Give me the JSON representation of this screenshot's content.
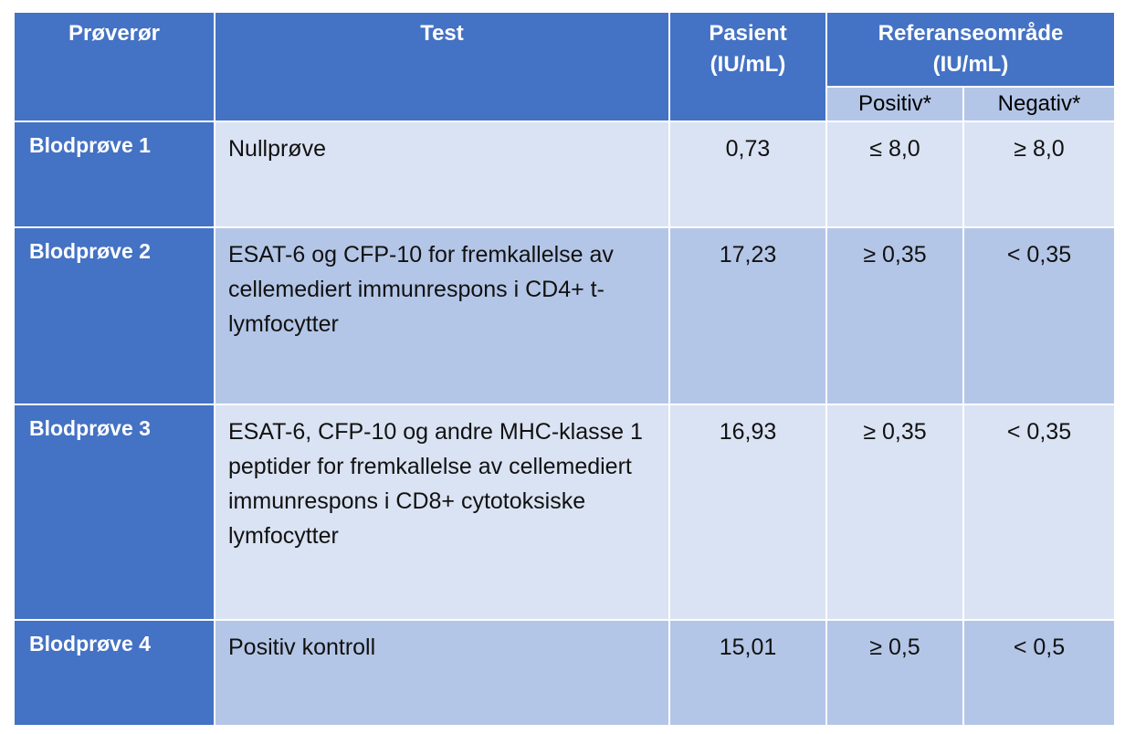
{
  "headers": {
    "sample_tube": "Prøverør",
    "test": "Test",
    "patient": "Pasient (IU/mL)",
    "reference_range": "Referanseområde (IU/mL)",
    "positive": "Positiv*",
    "negative": "Negativ*"
  },
  "rows": [
    {
      "tube": "Blodprøve 1",
      "test": "Nullprøve",
      "patient": "0,73",
      "positive": "≤ 8,0",
      "negative": "≥ 8,0"
    },
    {
      "tube": "Blodprøve 2",
      "test": "ESAT-6 og CFP-10 for fremkallelse av cellemediert immunrespons i CD4+ t-lymfocytter",
      "patient": "17,23",
      "positive": "≥ 0,35",
      "negative": "< 0,35"
    },
    {
      "tube": "Blodprøve 3",
      "test": "ESAT-6, CFP-10 og andre MHC-klasse 1 peptider for fremkallelse av cellemediert immunrespons i CD8+ cytotoksiske lymfocytter",
      "patient": "16,93",
      "positive": "≥ 0,35",
      "negative": "< 0,35"
    },
    {
      "tube": "Blodprøve 4",
      "test": "Positiv kontroll",
      "patient": "15,01",
      "positive": "≥ 0,5",
      "negative": "< 0,5"
    }
  ],
  "colors": {
    "header_bg": "#4472c4",
    "row_light": "#dae3f3",
    "row_dark": "#b4c6e7"
  }
}
